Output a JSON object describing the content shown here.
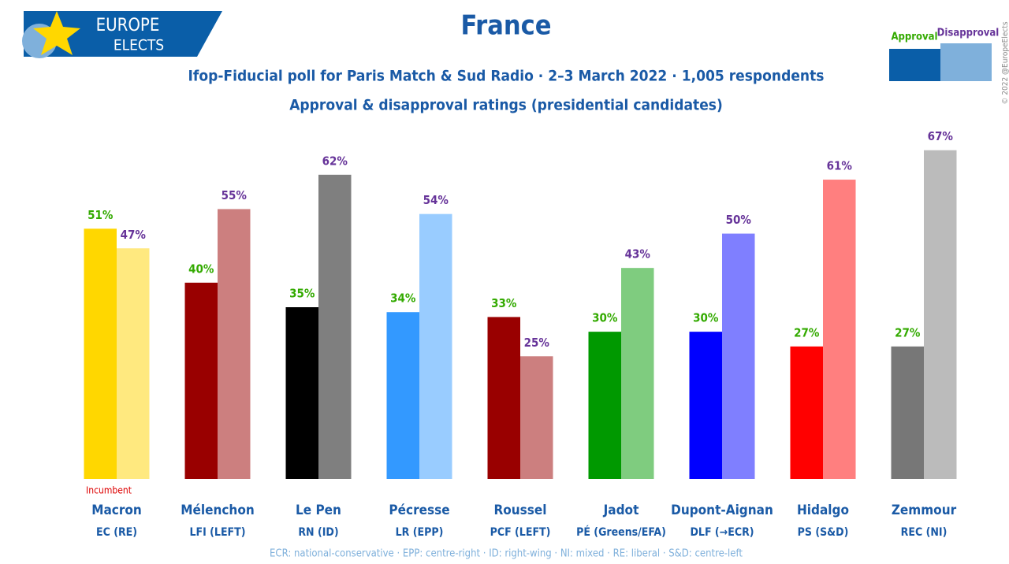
{
  "brand": [
    "EUROPE",
    "ELECTS"
  ],
  "copyright": "© 2022 @EuropeElects",
  "chart_data": {
    "type": "bar",
    "title": "France",
    "subtitle": "Ifop-Fiducial poll for Paris Match & Sud Radio · 2–3 March 2022 · 1,005 respondents",
    "subtitle2": "Approval & disapproval ratings (presidential candidates)",
    "categories": [
      "Macron",
      "Mélenchon",
      "Le Pen",
      "Pécresse",
      "Roussel",
      "Jadot",
      "Dupont-Aignan",
      "Hidalgo",
      "Zemmour"
    ],
    "parties": [
      "EC (RE)",
      "LFI (LEFT)",
      "RN (ID)",
      "LR (EPP)",
      "PCF (LEFT)",
      "PÉ (Greens/EFA)",
      "DLF (→ECR)",
      "PS (S&D)",
      "REC (NI)"
    ],
    "annotation": "Incumbent",
    "footnote": "ECR: national-conservative · EPP: centre-right · ID: right-wing · NI: mixed · RE: liberal · S&D: centre-left",
    "ylim": [
      0,
      70
    ],
    "series": [
      {
        "name": "Approval",
        "color": "#0a5ea8",
        "label_color": "#33aa00",
        "colors": [
          "#ffd700",
          "#990000",
          "#000000",
          "#3399ff",
          "#990000",
          "#009900",
          "#0000ff",
          "#ff0000",
          "#777777"
        ],
        "values": [
          51,
          40,
          35,
          34,
          33,
          30,
          30,
          27,
          27
        ],
        "value_labels": [
          "51%",
          "40%",
          "35%",
          "34%",
          "33%",
          "30%",
          "30%",
          "27%",
          "27%"
        ]
      },
      {
        "name": "Disapproval",
        "color": "#7fb0db",
        "label_color": "#663399",
        "colors": [
          "#ffe97f",
          "#cc7f7f",
          "#7f7f7f",
          "#99ccff",
          "#cc7f7f",
          "#7fcc7f",
          "#7f7fff",
          "#ff7f7f",
          "#bbbbbb"
        ],
        "values": [
          47,
          55,
          62,
          54,
          25,
          43,
          50,
          61,
          67
        ],
        "value_labels": [
          "47%",
          "55%",
          "62%",
          "54%",
          "25%",
          "43%",
          "50%",
          "61%",
          "67%"
        ]
      }
    ]
  }
}
